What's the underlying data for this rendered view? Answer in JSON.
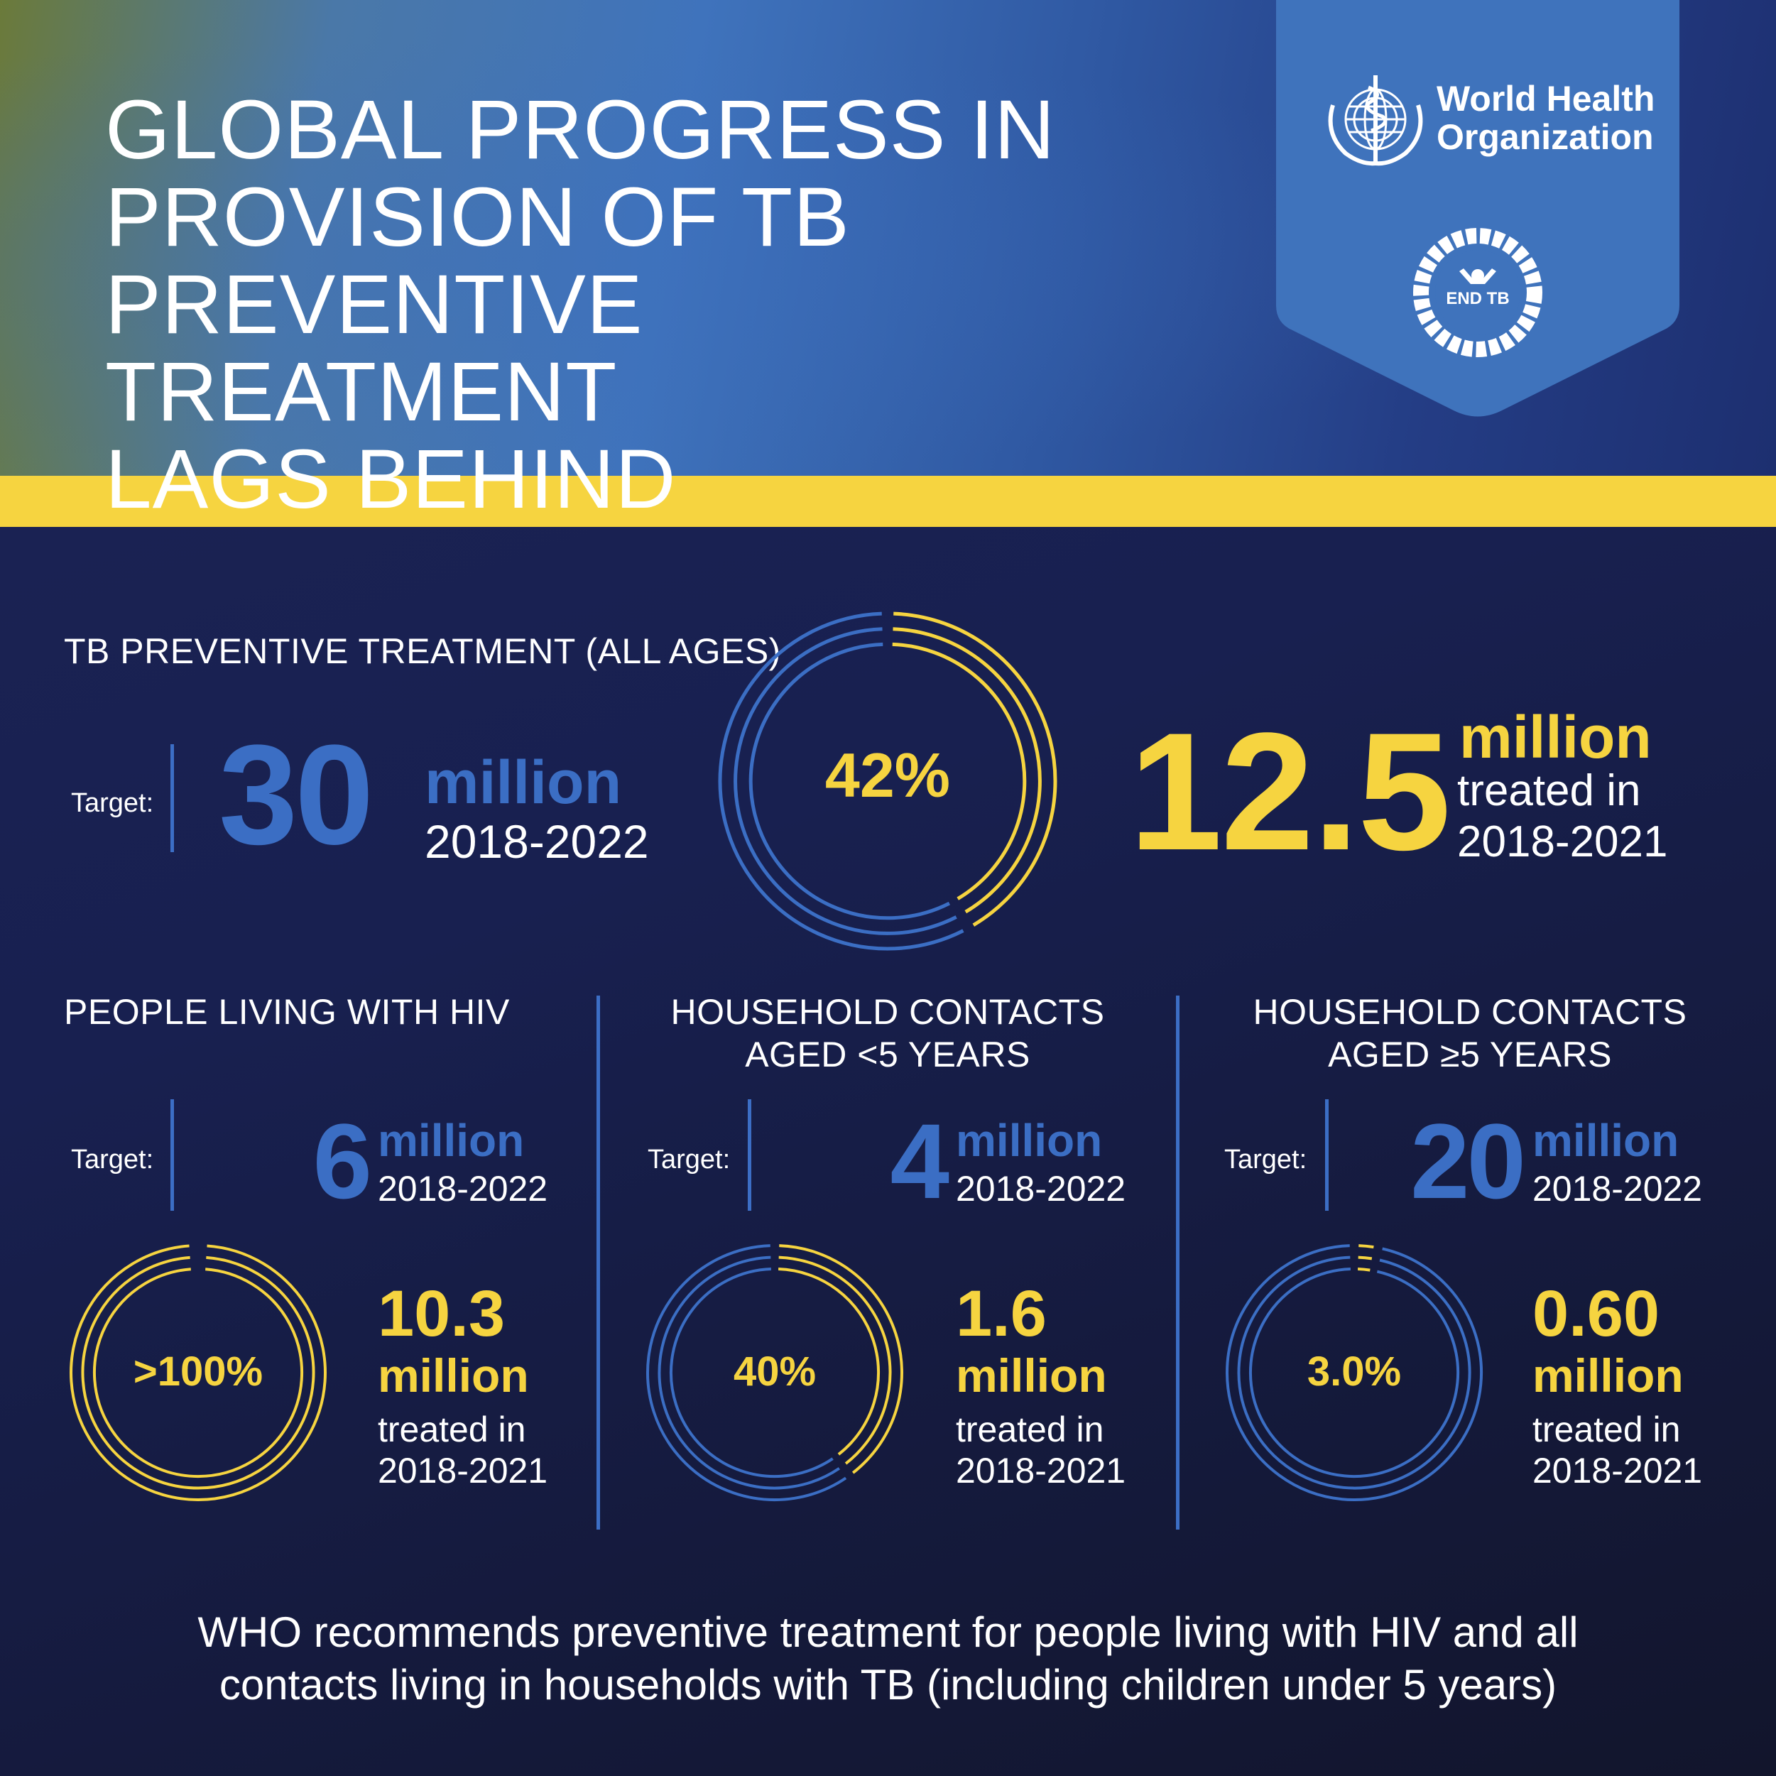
{
  "header": {
    "title_lines": [
      "GLOBAL PROGRESS IN",
      "PROVISION OF TB",
      "PREVENTIVE TREATMENT",
      "LAGS BEHIND"
    ],
    "org_name_line1": "World Health",
    "org_name_line2": "Organization",
    "end_tb_label": "END TB"
  },
  "colors": {
    "accent_yellow": "#f6d440",
    "accent_blue": "#3b6ec4",
    "background_navy": "#1a2048",
    "badge_blue": "#3f73bc"
  },
  "all_ages": {
    "section_title": "TB PREVENTIVE TREATMENT (ALL AGES)",
    "target_label": "Target:",
    "target_value": "30",
    "target_unit": "million",
    "target_period": "2018-2022",
    "percent_label": "42%",
    "percent_value": 42,
    "treated_value": "12.5",
    "treated_unit": "million",
    "treated_text": "treated in",
    "treated_period": "2018-2021"
  },
  "groups": [
    {
      "section_title": "PEOPLE LIVING WITH HIV",
      "target_label": "Target:",
      "target_value": "6",
      "target_unit": "million",
      "target_period": "2018-2022",
      "percent_label": ">100%",
      "percent_value": 100,
      "treated_value": "10.3",
      "treated_unit": "million",
      "treated_text": "treated in",
      "treated_period": "2018-2021"
    },
    {
      "section_title_line1": "HOUSEHOLD CONTACTS",
      "section_title_line2": "AGED <5 YEARS",
      "target_label": "Target:",
      "target_value": "4",
      "target_unit": "million",
      "target_period": "2018-2022",
      "percent_label": "40%",
      "percent_value": 40,
      "treated_value": "1.6",
      "treated_unit": "million",
      "treated_text": "treated in",
      "treated_period": "2018-2021"
    },
    {
      "section_title_line1": "HOUSEHOLD CONTACTS",
      "section_title_line2": "AGED ≥5 YEARS",
      "target_label": "Target:",
      "target_value": "20",
      "target_unit": "million",
      "target_period": "2018-2022",
      "percent_label": "3.0%",
      "percent_value": 3.0,
      "treated_value": "0.60",
      "treated_unit": "million",
      "treated_text": "treated in",
      "treated_period": "2018-2021"
    }
  ],
  "footer": {
    "line1": "WHO recommends preventive treatment for people living with HIV and all",
    "line2": "contacts living in households with TB (including children under 5 years)"
  }
}
